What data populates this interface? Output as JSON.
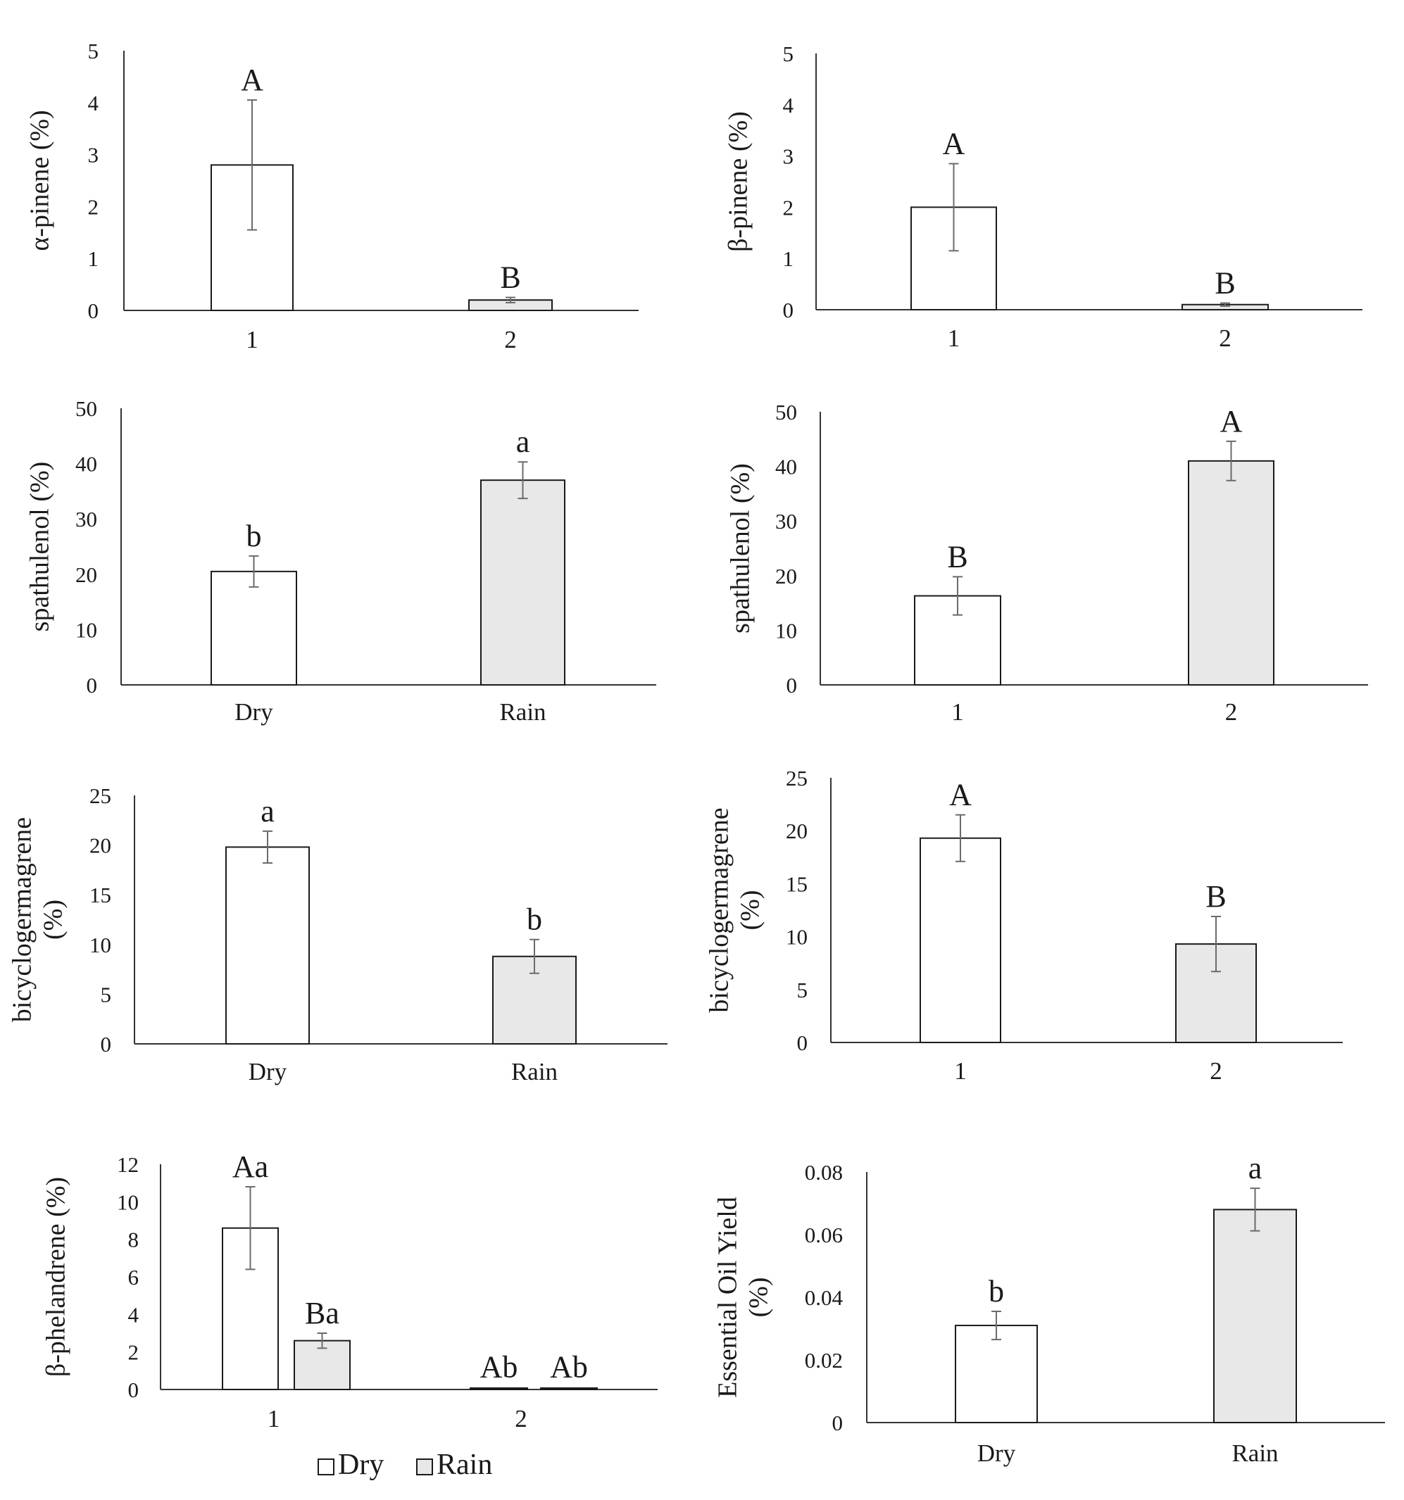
{
  "colors": {
    "dry": "#ffffff",
    "rain": "#e8e8e8",
    "stroke": "#1a1a1a",
    "error_bar": "#6b6b6b"
  },
  "legend": {
    "entries": [
      {
        "label": "Dry",
        "series": "dry"
      },
      {
        "label": "Rain",
        "series": "rain"
      }
    ]
  },
  "chart_data": [
    {
      "id": "alpha-pinene-chart",
      "type": "bar",
      "ylabel": [
        "α-pinene (%)"
      ],
      "ylim": [
        0,
        5
      ],
      "yticks": [
        "0",
        "1",
        "2",
        "3",
        "4",
        "5"
      ],
      "categories": [
        "1",
        "2"
      ],
      "bars": [
        {
          "category": "1",
          "series": "dry",
          "value": 2.8,
          "error": 1.25,
          "label": "A"
        },
        {
          "category": "2",
          "series": "rain",
          "value": 0.2,
          "error": 0.05,
          "label": "B"
        }
      ]
    },
    {
      "id": "beta-pinene-chart",
      "type": "bar",
      "ylabel": [
        "β-pinene (%)"
      ],
      "ylim": [
        0,
        5
      ],
      "yticks": [
        "0",
        "1",
        "2",
        "3",
        "4",
        "5"
      ],
      "categories": [
        "1",
        "2"
      ],
      "bars": [
        {
          "category": "1",
          "series": "dry",
          "value": 2.0,
          "error": 0.85,
          "label": "A"
        },
        {
          "category": "2",
          "series": "rain",
          "value": 0.1,
          "error": 0.03,
          "label": "B"
        }
      ]
    },
    {
      "id": "spathulenol-season-chart",
      "type": "bar",
      "ylabel": [
        "spathulenol (%)"
      ],
      "ylim": [
        0,
        50
      ],
      "yticks": [
        "0",
        "10",
        "20",
        "30",
        "40",
        "50"
      ],
      "categories": [
        "Dry",
        "Rain"
      ],
      "bars": [
        {
          "category": "Dry",
          "series": "dry",
          "value": 20.5,
          "error": 2.8,
          "label": "b"
        },
        {
          "category": "Rain",
          "series": "rain",
          "value": 37,
          "error": 3.3,
          "label": "a"
        }
      ]
    },
    {
      "id": "spathulenol-group-chart",
      "type": "bar",
      "ylabel": [
        "spathulenol (%)"
      ],
      "ylim": [
        0,
        50
      ],
      "yticks": [
        "0",
        "10",
        "20",
        "30",
        "40",
        "50"
      ],
      "categories": [
        "1",
        "2"
      ],
      "bars": [
        {
          "category": "1",
          "series": "dry",
          "value": 16.3,
          "error": 3.5,
          "label": "B"
        },
        {
          "category": "2",
          "series": "rain",
          "value": 41,
          "error": 3.6,
          "label": "A"
        }
      ]
    },
    {
      "id": "bicyclogermagrene-season-chart",
      "type": "bar",
      "ylabel": [
        "bicyclogermagrene",
        "(%)"
      ],
      "ylim": [
        0,
        25
      ],
      "yticks": [
        "0",
        "5",
        "10",
        "15",
        "20",
        "25"
      ],
      "categories": [
        "Dry",
        "Rain"
      ],
      "bars": [
        {
          "category": "Dry",
          "series": "dry",
          "value": 19.8,
          "error": 1.6,
          "label": "a"
        },
        {
          "category": "Rain",
          "series": "rain",
          "value": 8.8,
          "error": 1.7,
          "label": "b"
        }
      ]
    },
    {
      "id": "bicyclogermagrene-group-chart",
      "type": "bar",
      "ylabel": [
        "bicyclogermagrene",
        "(%)"
      ],
      "ylim": [
        0,
        25
      ],
      "yticks": [
        "0",
        "5",
        "10",
        "15",
        "20",
        "25"
      ],
      "categories": [
        "1",
        "2"
      ],
      "bars": [
        {
          "category": "1",
          "series": "dry",
          "value": 19.3,
          "error": 2.2,
          "label": "A"
        },
        {
          "category": "2",
          "series": "rain",
          "value": 9.3,
          "error": 2.6,
          "label": "B"
        }
      ]
    },
    {
      "id": "beta-phellandrene-chart",
      "type": "bar",
      "ylabel": [
        "β-phelandrene (%)"
      ],
      "ylim": [
        0,
        12
      ],
      "yticks": [
        "0",
        "2",
        "4",
        "6",
        "8",
        "10",
        "12"
      ],
      "categories": [
        "1",
        "2"
      ],
      "bars": [
        {
          "category": "1",
          "series": "dry",
          "value": 8.6,
          "error": 2.2,
          "label": "Aa"
        },
        {
          "category": "1",
          "series": "rain",
          "value": 2.6,
          "error": 0.4,
          "label": "Ba"
        },
        {
          "category": "2",
          "series": "dry",
          "value": 0.05,
          "error": 0,
          "label": "Ab"
        },
        {
          "category": "2",
          "series": "rain",
          "value": 0.05,
          "error": 0,
          "label": "Ab"
        }
      ]
    },
    {
      "id": "essential-oil-yield-chart",
      "type": "bar",
      "ylabel": [
        "Essential Oil Yield",
        "(%)"
      ],
      "ylim": [
        0,
        0.08
      ],
      "yticks": [
        "0",
        "0.02",
        "0.04",
        "0.06",
        "0.08"
      ],
      "categories": [
        "Dry",
        "Rain"
      ],
      "bars": [
        {
          "category": "Dry",
          "series": "dry",
          "value": 0.031,
          "error": 0.0045,
          "label": "b"
        },
        {
          "category": "Rain",
          "series": "rain",
          "value": 0.068,
          "error": 0.0068,
          "label": "a"
        }
      ]
    }
  ]
}
